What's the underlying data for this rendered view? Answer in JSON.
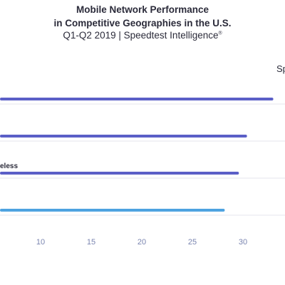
{
  "title_line1": "Mobile Network Performance",
  "title_line2": "in Competitive Geographies in the U.S.",
  "subtitle": "Q1-Q2 2019 | Speedtest Intelligence",
  "subtitle_mark": "®",
  "legend_fragment": "Sp",
  "carrier_label_fragment": "eless",
  "chart_data": {
    "type": "bar",
    "orientation": "horizontal",
    "title": "Mobile Network Performance in Competitive Geographies in the U.S.",
    "subtitle": "Q1-Q2 2019 | Speedtest Intelligence®",
    "categories": [
      "",
      "",
      "eless",
      ""
    ],
    "values": [
      33.0,
      30.4,
      29.6,
      28.2
    ],
    "bar_colors": [
      "#5b5fc7",
      "#5b5fc7",
      "#5b5fc7",
      "#4ea3e0"
    ],
    "xticks": [
      10,
      15,
      20,
      25,
      30
    ],
    "xlim": [
      6,
      35
    ],
    "grid": false
  }
}
